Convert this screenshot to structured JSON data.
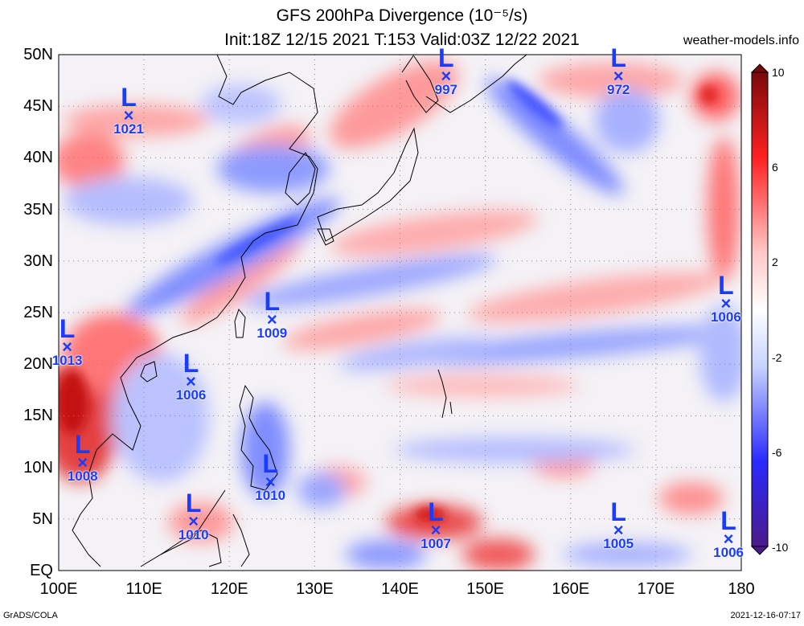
{
  "title": "GFS 200hPa Divergence (10⁻⁵/s)",
  "subtitle": "Init:18Z 12/15 2021 T:153 Valid:03Z 12/22 2021",
  "site": "weather-models.info",
  "credit_left": "GrADS/COLA",
  "credit_right": "2021-12-16-07:17",
  "map": {
    "lon_range": [
      100,
      180
    ],
    "lat_range": [
      0,
      50
    ],
    "lat_labels": [
      "50N",
      "45N",
      "40N",
      "35N",
      "30N",
      "25N",
      "20N",
      "15N",
      "10N",
      "5N",
      "EQ"
    ],
    "lon_labels": [
      "100E",
      "110E",
      "120E",
      "130E",
      "140E",
      "150E",
      "160E",
      "170E",
      "180"
    ],
    "grid": true
  },
  "colorbar": {
    "labels": [
      "10",
      "6",
      "2",
      "-2",
      "-6",
      "-10"
    ],
    "colors": [
      "#7a0a0a",
      "#ff2020",
      "#ffc8c8",
      "#ffffff",
      "#c8d4ff",
      "#2a2aff",
      "#4b1a8a"
    ]
  },
  "lows": [
    {
      "pressure": "1021",
      "lon": 108.2,
      "lat": 43.6
    },
    {
      "pressure": "997",
      "lon": 145.4,
      "lat": 47.4
    },
    {
      "pressure": "972",
      "lon": 165.6,
      "lat": 47.4
    },
    {
      "pressure": "1013",
      "lon": 101.0,
      "lat": 21.2
    },
    {
      "pressure": "1009",
      "lon": 125.0,
      "lat": 23.8
    },
    {
      "pressure": "1006",
      "lon": 115.5,
      "lat": 17.8
    },
    {
      "pressure": "1006",
      "lon": 178.2,
      "lat": 25.4
    },
    {
      "pressure": "1008",
      "lon": 102.8,
      "lat": 10.0
    },
    {
      "pressure": "1010",
      "lon": 124.8,
      "lat": 8.1
    },
    {
      "pressure": "1010",
      "lon": 115.8,
      "lat": 4.3
    },
    {
      "pressure": "1007",
      "lon": 144.2,
      "lat": 3.4
    },
    {
      "pressure": "1005",
      "lon": 165.6,
      "lat": 3.4
    },
    {
      "pressure": "1006",
      "lon": 178.5,
      "lat": 2.6
    }
  ]
}
